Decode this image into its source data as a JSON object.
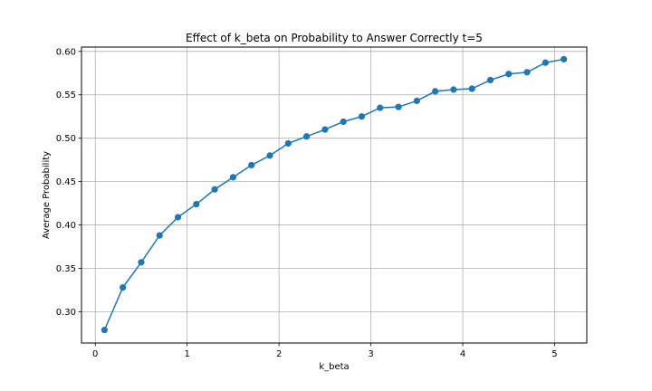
{
  "chart_data": {
    "type": "line",
    "title": "Effect of k_beta on Probability to Answer Correctly t=5",
    "xlabel": "k_beta",
    "ylabel": "Average Probability",
    "xlim": [
      -0.15,
      5.35
    ],
    "ylim": [
      0.264,
      0.605
    ],
    "xticks": [
      0,
      1,
      2,
      3,
      4,
      5
    ],
    "xtick_labels": [
      "0",
      "1",
      "2",
      "3",
      "4",
      "5"
    ],
    "yticks": [
      0.3,
      0.35,
      0.4,
      0.45,
      0.5,
      0.55,
      0.6
    ],
    "ytick_labels": [
      "0.30",
      "0.35",
      "0.40",
      "0.45",
      "0.50",
      "0.55",
      "0.60"
    ],
    "grid": true,
    "markers": true,
    "series": [
      {
        "color": "#1f77b4",
        "x": [
          0.1,
          0.3,
          0.5,
          0.7,
          0.9,
          1.1,
          1.3,
          1.5,
          1.7,
          1.9,
          2.1,
          2.3,
          2.5,
          2.7,
          2.9,
          3.1,
          3.3,
          3.5,
          3.7,
          3.9,
          4.1,
          4.3,
          4.5,
          4.7,
          4.9,
          5.1
        ],
        "y": [
          0.279,
          0.328,
          0.357,
          0.388,
          0.409,
          0.424,
          0.441,
          0.455,
          0.469,
          0.48,
          0.494,
          0.502,
          0.51,
          0.519,
          0.525,
          0.535,
          0.536,
          0.543,
          0.554,
          0.556,
          0.557,
          0.567,
          0.574,
          0.576,
          0.587,
          0.591
        ]
      }
    ]
  }
}
